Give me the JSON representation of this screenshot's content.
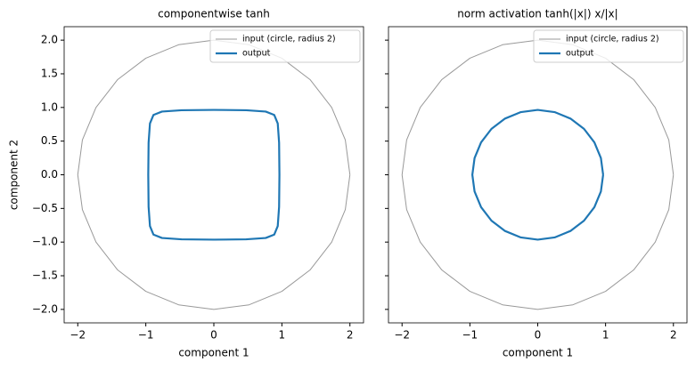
{
  "chart_data": [
    {
      "type": "line",
      "title": "componentwise tanh",
      "xlabel": "component 1",
      "ylabel": "component 2",
      "xlim": [
        -2.2,
        2.2
      ],
      "ylim": [
        -2.2,
        2.2
      ],
      "xticks": [
        {
          "value": -2,
          "label": "−2"
        },
        {
          "value": -1,
          "label": "−1"
        },
        0,
        1,
        2
      ],
      "yticks": [
        {
          "value": -2,
          "label": "−2.0"
        },
        {
          "value": -1.5,
          "label": "−1.5"
        },
        {
          "value": -1,
          "label": "−1.0"
        },
        {
          "value": -0.5,
          "label": "−0.5"
        },
        {
          "value": 0,
          "label": "0.0"
        },
        0.5,
        {
          "value": 1,
          "label": "1.0"
        },
        1.5,
        {
          "value": 2,
          "label": "2.0"
        }
      ],
      "legend": "upper right",
      "series": [
        {
          "name": "input (circle, radius 2)",
          "color": "#999999",
          "width": 1,
          "x": [
            2,
            1.932,
            1.732,
            1.414,
            1,
            0.518,
            0,
            -0.518,
            -1,
            -1.414,
            -1.732,
            -1.932,
            -2,
            -1.932,
            -1.732,
            -1.414,
            -1,
            -0.518,
            0,
            0.518,
            1,
            1.414,
            1.732,
            1.932,
            2
          ],
          "y": [
            0,
            0.518,
            1,
            1.414,
            1.732,
            1.932,
            2,
            1.932,
            1.732,
            1.414,
            1,
            0.518,
            0,
            -0.518,
            -1,
            -1.414,
            -1.732,
            -1.932,
            -2,
            -1.932,
            -1.732,
            -1.414,
            -1,
            -0.518,
            0
          ]
        },
        {
          "name": "output",
          "color": "#1f77b4",
          "width": 2.2,
          "x": [
            0.964,
            0.959,
            0.939,
            0.888,
            0.762,
            0.476,
            0,
            -0.476,
            -0.762,
            -0.888,
            -0.939,
            -0.959,
            -0.964,
            -0.959,
            -0.939,
            -0.888,
            -0.762,
            -0.476,
            0,
            0.476,
            0.762,
            0.888,
            0.939,
            0.959,
            0.964
          ],
          "y": [
            0,
            0.476,
            0.762,
            0.888,
            0.939,
            0.959,
            0.964,
            0.959,
            0.939,
            0.888,
            0.762,
            0.476,
            0,
            -0.476,
            -0.762,
            -0.888,
            -0.939,
            -0.959,
            -0.964,
            -0.959,
            -0.939,
            -0.888,
            -0.762,
            -0.476,
            0
          ]
        }
      ]
    },
    {
      "type": "line",
      "title": "norm activation  tanh(|x|) x/|x|",
      "xlabel": "component 1",
      "xlim": [
        -2.2,
        2.2
      ],
      "ylim": [
        -2.2,
        2.2
      ],
      "xticks": [
        {
          "value": -2,
          "label": "−2"
        },
        {
          "value": -1,
          "label": "−1"
        },
        0,
        1,
        2
      ],
      "yticks": [
        -2,
        -1.5,
        -1,
        -0.5,
        0,
        0.5,
        1,
        1.5,
        2
      ],
      "legend": "upper right",
      "series": [
        {
          "name": "input (circle, radius 2)",
          "color": "#999999",
          "width": 1,
          "x": [
            2,
            1.932,
            1.732,
            1.414,
            1,
            0.518,
            0,
            -0.518,
            -1,
            -1.414,
            -1.732,
            -1.932,
            -2,
            -1.932,
            -1.732,
            -1.414,
            -1,
            -0.518,
            0,
            0.518,
            1,
            1.414,
            1.732,
            1.932,
            2
          ],
          "y": [
            0,
            0.518,
            1,
            1.414,
            1.732,
            1.932,
            2,
            1.932,
            1.732,
            1.414,
            1,
            0.518,
            0,
            -0.518,
            -1,
            -1.414,
            -1.732,
            -1.932,
            -2,
            -1.932,
            -1.732,
            -1.414,
            -1,
            -0.518,
            0
          ]
        },
        {
          "name": "output",
          "color": "#1f77b4",
          "width": 2.2,
          "x": [
            0.964,
            0.931,
            0.835,
            0.682,
            0.482,
            0.249,
            0,
            -0.249,
            -0.482,
            -0.682,
            -0.835,
            -0.931,
            -0.964,
            -0.931,
            -0.835,
            -0.682,
            -0.482,
            -0.249,
            0,
            0.249,
            0.482,
            0.682,
            0.835,
            0.931,
            0.964
          ],
          "y": [
            0,
            0.249,
            0.482,
            0.682,
            0.835,
            0.931,
            0.964,
            0.931,
            0.835,
            0.682,
            0.482,
            0.249,
            0,
            -0.249,
            -0.482,
            -0.682,
            -0.835,
            -0.931,
            -0.964,
            -0.931,
            -0.835,
            -0.682,
            -0.482,
            -0.249,
            0
          ]
        }
      ]
    }
  ]
}
